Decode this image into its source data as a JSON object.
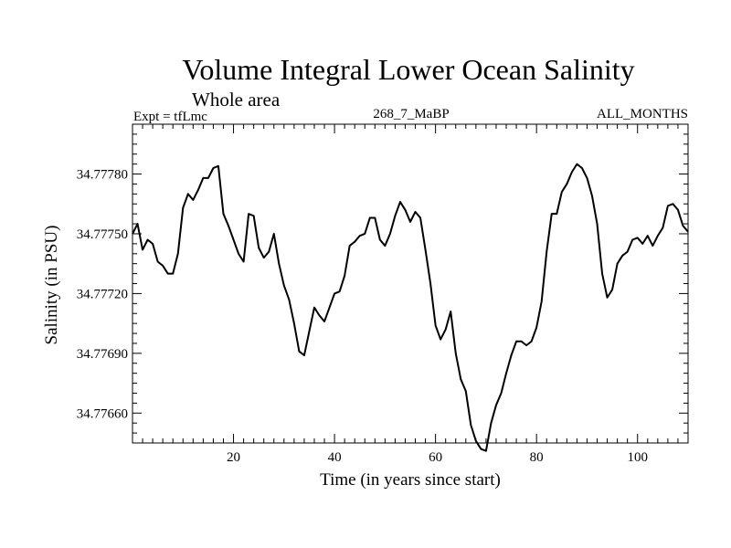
{
  "chart_data": {
    "type": "line",
    "title": "Volume Integral Lower Ocean Salinity",
    "subtitle": "Whole area",
    "header_left": "Expt = tfLmc",
    "header_center": "268_7_MaBP",
    "header_right": "ALL_MONTHS",
    "xlabel": "Time (in years since start)",
    "ylabel": "Salinity (in PSU)",
    "xlim": [
      0,
      110
    ],
    "ylim": [
      34.77645,
      34.77805
    ],
    "x_ticks": [
      20,
      40,
      60,
      80,
      100
    ],
    "x_tick_labels": [
      "20",
      "40",
      "60",
      "80",
      "100"
    ],
    "y_ticks": [
      34.7766,
      34.7769,
      34.7772,
      34.7775,
      34.7778
    ],
    "y_tick_labels": [
      "34.77660",
      "34.77690",
      "34.77720",
      "34.77750",
      "34.77780"
    ],
    "grid": false,
    "series": [
      {
        "name": "Salinity",
        "color": "#000000",
        "x": [
          0,
          1,
          2,
          3,
          4,
          5,
          6,
          7,
          8,
          9,
          10,
          11,
          12,
          13,
          14,
          15,
          16,
          17,
          18,
          19,
          20,
          21,
          22,
          23,
          24,
          25,
          26,
          27,
          28,
          29,
          30,
          31,
          32,
          33,
          34,
          35,
          36,
          37,
          38,
          39,
          40,
          41,
          42,
          43,
          44,
          45,
          46,
          47,
          48,
          49,
          50,
          51,
          52,
          53,
          54,
          55,
          56,
          57,
          58,
          59,
          60,
          61,
          62,
          63,
          64,
          65,
          66,
          67,
          68,
          69,
          70,
          71,
          72,
          73,
          74,
          75,
          76,
          77,
          78,
          79,
          80,
          81,
          82,
          83,
          84,
          85,
          86,
          87,
          88,
          89,
          90,
          91,
          92,
          93,
          94,
          95,
          96,
          97,
          98,
          99,
          100,
          101,
          102,
          103,
          104,
          105,
          106,
          107,
          108,
          109,
          110
        ],
        "values": [
          34.7775,
          34.77755,
          34.77742,
          34.77747,
          34.77745,
          34.77736,
          34.77734,
          34.7773,
          34.7773,
          34.7774,
          34.77763,
          34.7777,
          34.77767,
          34.77772,
          34.77778,
          34.77778,
          34.77783,
          34.77784,
          34.7776,
          34.77754,
          34.77747,
          34.7774,
          34.77736,
          34.7776,
          34.77759,
          34.77743,
          34.77738,
          34.77741,
          34.7775,
          34.77735,
          34.77724,
          34.77717,
          34.77705,
          34.77691,
          34.77689,
          34.77701,
          34.77713,
          34.77709,
          34.77706,
          34.77713,
          34.7772,
          34.77721,
          34.77729,
          34.77744,
          34.77746,
          34.77749,
          34.7775,
          34.77758,
          34.77758,
          34.77747,
          34.77744,
          34.7775,
          34.77759,
          34.77766,
          34.77762,
          34.77756,
          34.77761,
          34.77758,
          34.77742,
          34.77725,
          34.77704,
          34.77697,
          34.77702,
          34.77711,
          34.7769,
          34.77677,
          34.77671,
          34.77654,
          34.77646,
          34.77642,
          34.77641,
          34.77655,
          34.77664,
          34.7767,
          34.7768,
          34.77689,
          34.77696,
          34.77696,
          34.77694,
          34.77696,
          34.77703,
          34.77716,
          34.77741,
          34.7776,
          34.7776,
          34.77771,
          34.77775,
          34.77781,
          34.77785,
          34.77783,
          34.77778,
          34.77769,
          34.77755,
          34.7773,
          34.77718,
          34.77722,
          34.77735,
          34.77739,
          34.77741,
          34.77747,
          34.77748,
          34.77745,
          34.77749,
          34.77744,
          34.77749,
          34.77753,
          34.77764,
          34.77765,
          34.77762,
          34.77754,
          34.77751
        ]
      }
    ]
  }
}
